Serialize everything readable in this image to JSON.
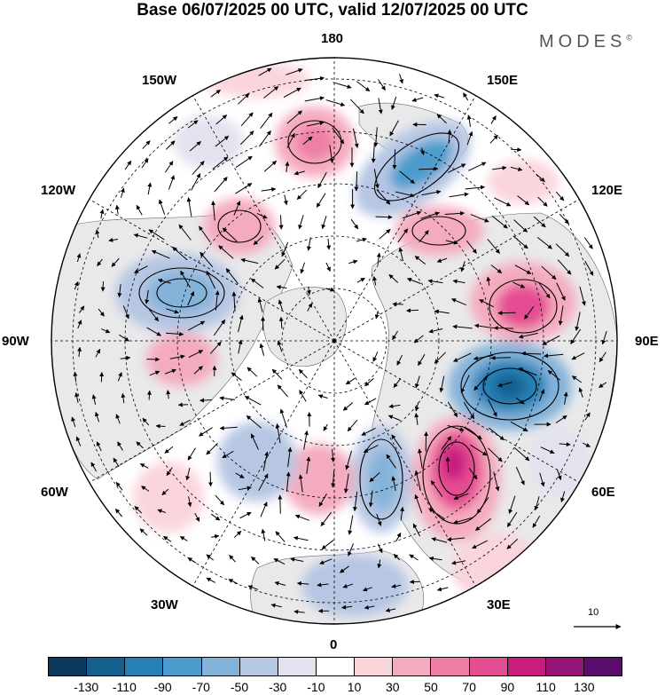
{
  "title": "Base 06/07/2025 00 UTC, valid 12/07/2025 00 UTC",
  "brand": "MODES",
  "brand_mark": "©",
  "longitude_labels": {
    "top": "180",
    "top_left": "150W",
    "top_right": "150E",
    "upper_left": "120W",
    "upper_right": "120E",
    "left": "90W",
    "right": "90E",
    "lower_left": "60W",
    "lower_right": "60E",
    "bottom_left": "30W",
    "bottom_right": "30E",
    "bottom": "0"
  },
  "reference_vector_label": "10",
  "colorbar": {
    "colors": [
      "#0d3a5c",
      "#155f8e",
      "#2580b5",
      "#4b9ccc",
      "#84b3da",
      "#b6c6e3",
      "#e3e3f0",
      "#ffffff",
      "#fad5dc",
      "#f5abbf",
      "#ef7fa6",
      "#e54d92",
      "#c81d7f",
      "#931475",
      "#5c0d6c"
    ],
    "tick_labels": [
      "-130",
      "-110",
      "-90",
      "-70",
      "-50",
      "-30",
      "-10",
      "10",
      "30",
      "50",
      "70",
      "90",
      "110",
      "130"
    ]
  },
  "icons": {
    "north_pole": "north-pole-marker",
    "vector": "arrow-icon"
  }
}
